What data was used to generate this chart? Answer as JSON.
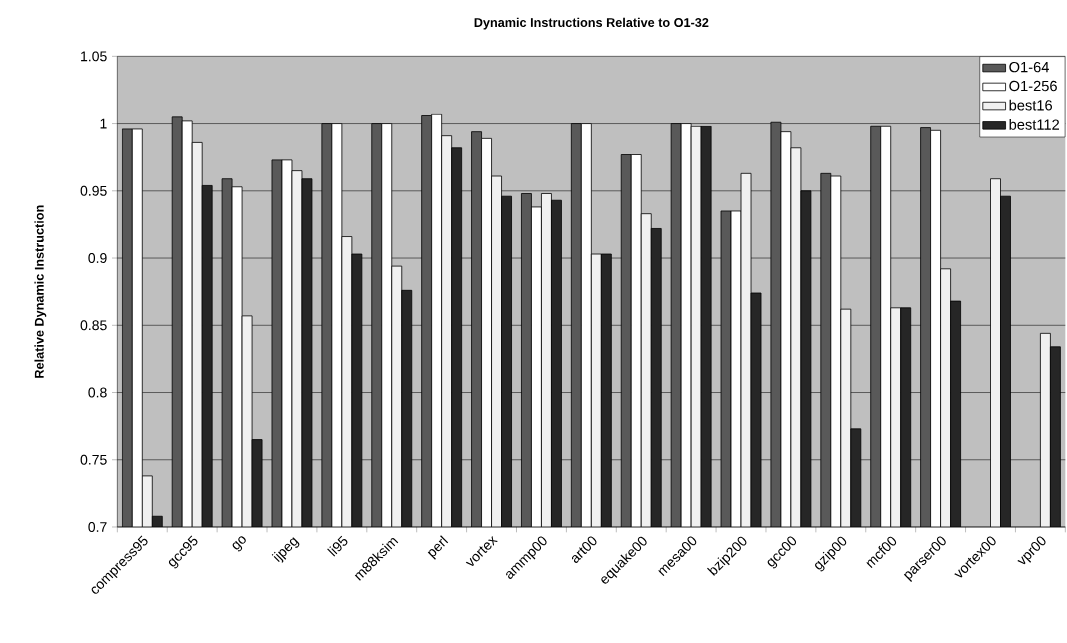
{
  "chart_data": {
    "type": "bar",
    "title": "Dynamic Instructions Relative to O1-32",
    "ylabel": "Relative Dynamic Instruction",
    "categories": [
      "compress95",
      "gcc95",
      "go",
      "ijpeg",
      "li95",
      "m88ksim",
      "perl",
      "vortex",
      "ammp00",
      "art00",
      "equake00",
      "mesa00",
      "bzip200",
      "gcc00",
      "gzip00",
      "mcf00",
      "parser00",
      "vortex00",
      "vpr00"
    ],
    "series": [
      {
        "name": "O1-64",
        "color": "#595959",
        "values": [
          0.996,
          1.005,
          0.959,
          0.973,
          1.0,
          1.0,
          1.006,
          0.994,
          0.948,
          1.0,
          0.977,
          1.0,
          0.935,
          1.001,
          0.963,
          0.998,
          0.997,
          null,
          null
        ]
      },
      {
        "name": "O1-256",
        "color": "#ffffff",
        "values": [
          0.996,
          1.002,
          0.953,
          0.973,
          1.0,
          1.0,
          1.007,
          0.989,
          0.938,
          1.0,
          0.977,
          1.0,
          0.935,
          0.994,
          0.961,
          0.998,
          0.995,
          null,
          null
        ]
      },
      {
        "name": "best16",
        "color": "#f0f0f0",
        "values": [
          0.738,
          0.986,
          0.857,
          0.965,
          0.916,
          0.894,
          0.991,
          0.961,
          0.948,
          0.903,
          0.933,
          0.998,
          0.963,
          0.982,
          0.862,
          0.863,
          0.892,
          0.959,
          0.844
        ]
      },
      {
        "name": "best112",
        "color": "#262626",
        "values": [
          0.708,
          0.954,
          0.765,
          0.959,
          0.903,
          0.876,
          0.982,
          0.946,
          0.943,
          0.903,
          0.922,
          0.998,
          0.874,
          0.95,
          0.773,
          0.863,
          0.868,
          0.946,
          0.834
        ]
      }
    ],
    "ylim": [
      0.7,
      1.05
    ],
    "yticks": [
      0.7,
      0.75,
      0.8,
      0.85,
      0.9,
      0.95,
      1,
      1.05
    ],
    "grid": "y",
    "legend": "top right"
  }
}
